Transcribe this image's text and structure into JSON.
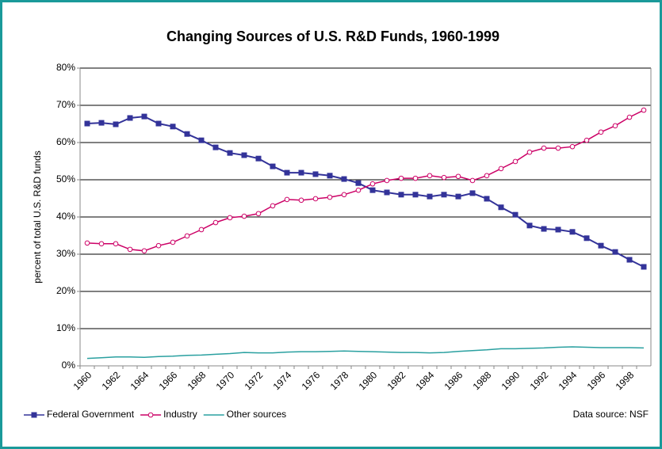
{
  "chart_data": {
    "type": "line",
    "title": "Changing Sources of U.S. R&D Funds, 1960-1999",
    "ylabel": "percent of total U.S. R&D funds",
    "annotation": "Data source: NSF",
    "categories": [
      "1960",
      null,
      "1962",
      null,
      "1964",
      null,
      "1966",
      null,
      "1968",
      null,
      "1970",
      null,
      "1972",
      null,
      "1974",
      null,
      "1976",
      null,
      "1978",
      null,
      "1980",
      null,
      "1982",
      null,
      "1984",
      null,
      "1986",
      null,
      "1988",
      null,
      "1990",
      null,
      "1992",
      null,
      "1994",
      null,
      "1996",
      null,
      "1998",
      null
    ],
    "series": [
      {
        "name": "Federal Government",
        "color": "#333399",
        "marker": "square",
        "values": [
          65.1,
          65.3,
          64.9,
          66.6,
          67.0,
          65.1,
          64.3,
          62.3,
          60.6,
          58.7,
          57.2,
          56.6,
          55.7,
          53.6,
          51.9,
          51.9,
          51.5,
          51.1,
          50.2,
          49.1,
          47.2,
          46.6,
          46.0,
          46.0,
          45.5,
          46.0,
          45.5,
          46.4,
          44.9,
          42.6,
          40.6,
          37.7,
          36.8,
          36.6,
          36.0,
          34.3,
          32.3,
          30.6,
          28.5,
          26.6
        ]
      },
      {
        "name": "Industry",
        "color": "#cc0066",
        "marker": "circle",
        "values": [
          33.0,
          32.8,
          32.8,
          31.3,
          30.9,
          32.3,
          33.2,
          34.9,
          36.6,
          38.5,
          39.8,
          40.2,
          40.9,
          43.0,
          44.7,
          44.5,
          44.9,
          45.3,
          46.0,
          47.2,
          48.9,
          49.8,
          50.4,
          50.4,
          51.1,
          50.6,
          50.9,
          49.8,
          51.1,
          53.0,
          54.9,
          57.4,
          58.5,
          58.5,
          58.9,
          60.6,
          62.8,
          64.5,
          66.8,
          68.7
        ]
      },
      {
        "name": "Other sources",
        "color": "#2aa0a0",
        "marker": "none",
        "values": [
          2.0,
          2.2,
          2.4,
          2.4,
          2.3,
          2.5,
          2.6,
          2.8,
          2.9,
          3.1,
          3.3,
          3.6,
          3.5,
          3.5,
          3.7,
          3.8,
          3.8,
          3.9,
          4.0,
          3.9,
          3.8,
          3.7,
          3.6,
          3.6,
          3.5,
          3.6,
          3.9,
          4.1,
          4.3,
          4.6,
          4.6,
          4.7,
          4.8,
          5.0,
          5.1,
          5.0,
          4.9,
          4.9,
          4.9,
          4.8
        ]
      }
    ],
    "ylim": [
      0,
      80
    ],
    "yticks": [
      {
        "value": 0,
        "label": "0%"
      },
      {
        "value": 10,
        "label": "10%"
      },
      {
        "value": 20,
        "label": "20%"
      },
      {
        "value": 30,
        "label": "30%"
      },
      {
        "value": 40,
        "label": "40%"
      },
      {
        "value": 50,
        "label": "50%"
      },
      {
        "value": 60,
        "label": "60%"
      },
      {
        "value": 70,
        "label": "70%"
      },
      {
        "value": 80,
        "label": "80%"
      }
    ],
    "grid": true,
    "legend": "bottom-left"
  }
}
